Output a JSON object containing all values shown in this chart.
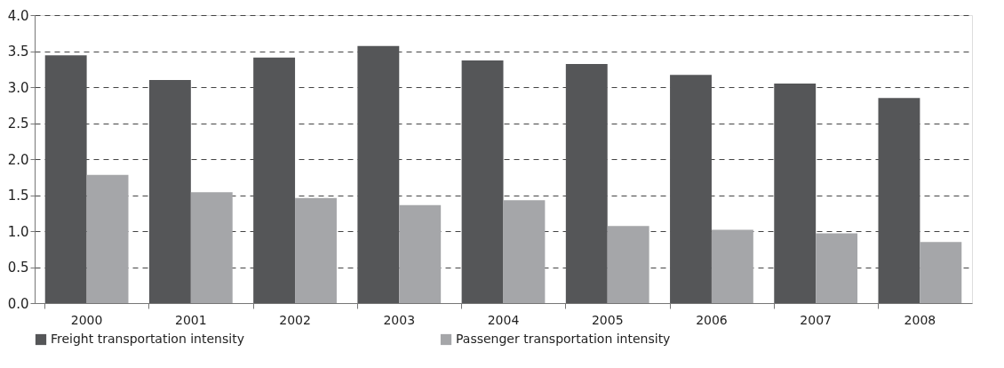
{
  "chart_data": {
    "type": "bar",
    "categories": [
      "2000",
      "2001",
      "2002",
      "2003",
      "2004",
      "2005",
      "2006",
      "2007",
      "2008"
    ],
    "series": [
      {
        "name": "Freight transportation intensity",
        "color": "#555658",
        "values": [
          3.44,
          3.1,
          3.41,
          3.57,
          3.37,
          3.32,
          3.17,
          3.05,
          2.85
        ]
      },
      {
        "name": "Passenger transportation intensity",
        "color": "#a5a6a9",
        "values": [
          1.78,
          1.54,
          1.46,
          1.36,
          1.43,
          1.07,
          1.02,
          0.97,
          0.85
        ]
      }
    ],
    "ylim": [
      0,
      4
    ],
    "yticks": [
      {
        "value": 0,
        "label": "0.0"
      },
      {
        "value": 0.5,
        "label": "0.5"
      },
      {
        "value": 1,
        "label": "1.0"
      },
      {
        "value": 1.5,
        "label": "1.5"
      },
      {
        "value": 2,
        "label": "2.0"
      },
      {
        "value": 2.5,
        "label": "2.5"
      },
      {
        "value": 3,
        "label": "3.0"
      },
      {
        "value": 3.5,
        "label": "3.5"
      },
      {
        "value": 4,
        "label": "4.0"
      }
    ],
    "grid": "y",
    "legend": "bottom"
  }
}
